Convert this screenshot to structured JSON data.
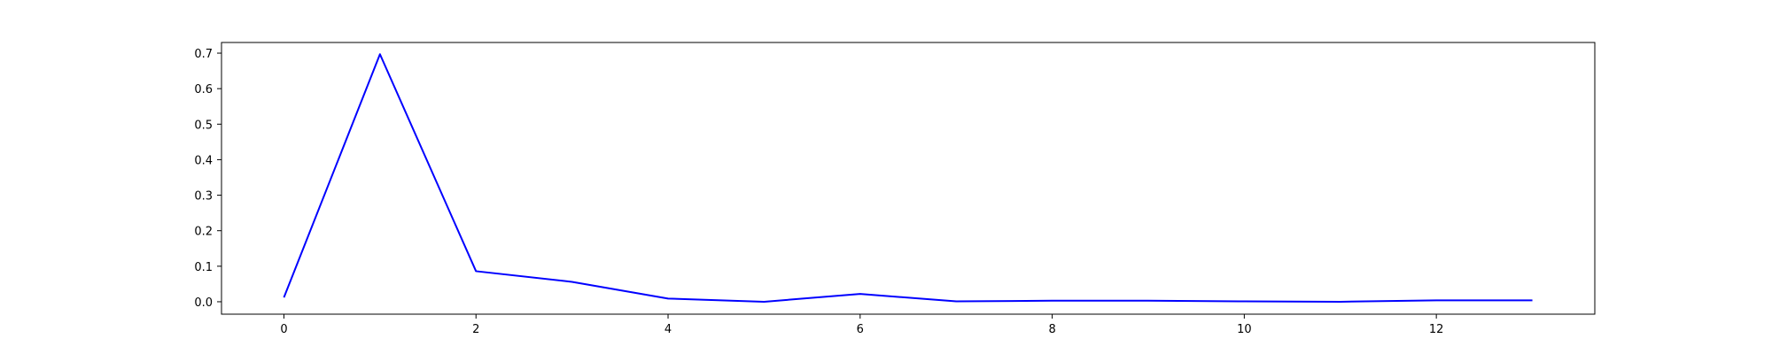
{
  "chart_data": {
    "type": "line",
    "title": "",
    "xlabel": "",
    "ylabel": "",
    "xlim": [
      -0.65,
      13.65
    ],
    "ylim": [
      -0.035,
      0.73
    ],
    "x_ticks": [
      0,
      2,
      4,
      6,
      8,
      10,
      12
    ],
    "y_ticks": [
      0.0,
      0.1,
      0.2,
      0.3,
      0.4,
      0.5,
      0.6,
      0.7
    ],
    "x_tick_labels": [
      "0",
      "2",
      "4",
      "6",
      "8",
      "10",
      "12"
    ],
    "y_tick_labels": [
      "0.0",
      "0.1",
      "0.2",
      "0.3",
      "0.4",
      "0.5",
      "0.6",
      "0.7"
    ],
    "grid": false,
    "series": [
      {
        "color": "#0000ff",
        "x": [
          0,
          1,
          2,
          3,
          4,
          5,
          6,
          7,
          8,
          9,
          10,
          11,
          12,
          13
        ],
        "values": [
          0.012,
          0.697,
          0.086,
          0.056,
          0.009,
          0.0,
          0.022,
          0.001,
          0.003,
          0.003,
          0.001,
          0.0,
          0.004,
          0.004
        ]
      }
    ]
  }
}
